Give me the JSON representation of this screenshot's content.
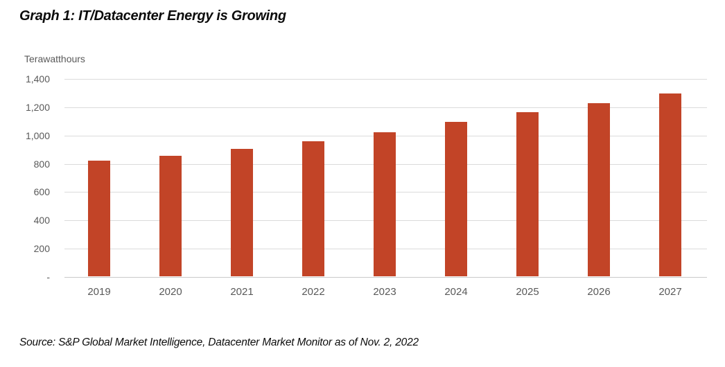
{
  "title": "Graph 1: IT/Datacenter Energy is Growing",
  "source": "Source: S&P Global Market Intelligence, Datacenter Market Monitor as of Nov. 2, 2022",
  "chart_data": {
    "type": "bar",
    "title": "Graph 1: IT/Datacenter Energy is Growing",
    "ylabel": "Terawatthours",
    "xlabel": "",
    "categories": [
      "2019",
      "2020",
      "2021",
      "2022",
      "2023",
      "2024",
      "2025",
      "2026",
      "2027"
    ],
    "values": [
      820,
      850,
      900,
      955,
      1020,
      1090,
      1160,
      1225,
      1290
    ],
    "ylim": [
      0,
      1400
    ],
    "ytick_step": 200,
    "ytick_labels": [
      "-",
      "200",
      "400",
      "600",
      "800",
      "1,000",
      "1,200",
      "1,400"
    ],
    "bar_color": "#c24427",
    "gridline_color": "#dbdbdb",
    "grid": true,
    "legend": "none",
    "source": "Source: S&P Global Market Intelligence, Datacenter Market Monitor as of Nov. 2, 2022"
  }
}
